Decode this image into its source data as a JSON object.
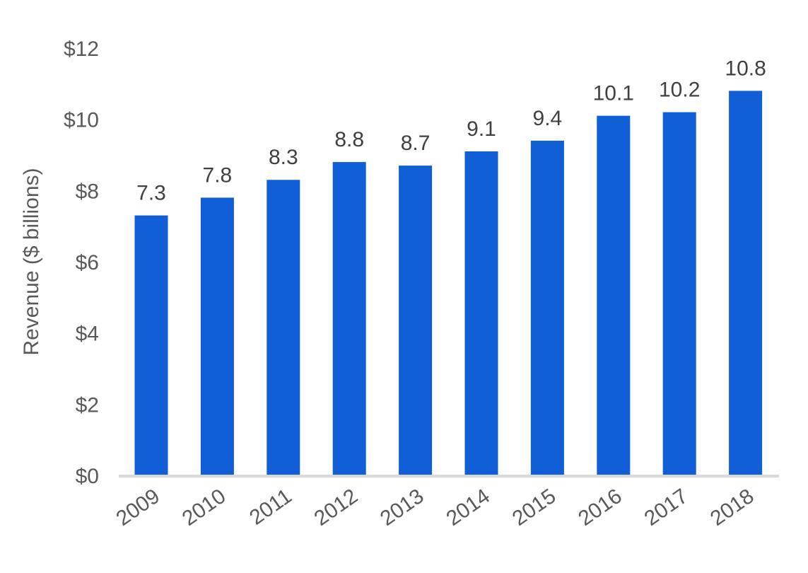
{
  "chart_data": {
    "type": "bar",
    "title": "",
    "xlabel": "",
    "ylabel": "Revenue ($ billions)",
    "categories": [
      "2009",
      "2010",
      "2011",
      "2012",
      "2013",
      "2014",
      "2015",
      "2016",
      "2017",
      "2018"
    ],
    "values": [
      7.3,
      7.8,
      8.3,
      8.8,
      8.7,
      9.1,
      9.4,
      10.1,
      10.2,
      10.8
    ],
    "data_labels": [
      "7.3",
      "7.8",
      "8.3",
      "8.8",
      "8.7",
      "9.1",
      "9.4",
      "10.1",
      "10.2",
      "10.8"
    ],
    "ylim": [
      0,
      12
    ],
    "yticks": [
      0,
      2,
      4,
      6,
      8,
      10,
      12
    ],
    "ytick_labels": [
      "$0",
      "$2",
      "$4",
      "$6",
      "$8",
      "$10",
      "$12"
    ],
    "grid": false,
    "bar_color": "#115fd6",
    "axis_color": "#d9d9d9"
  }
}
